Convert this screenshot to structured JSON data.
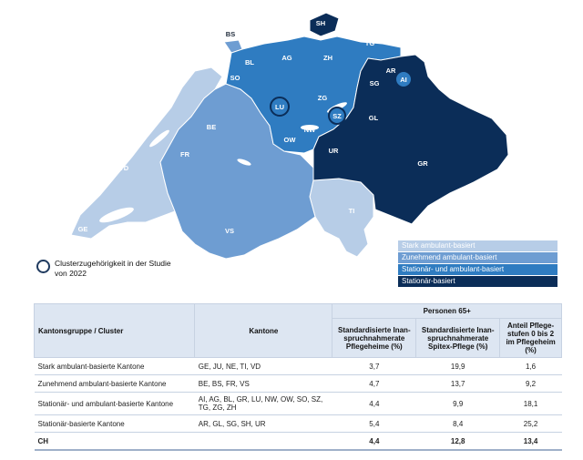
{
  "colors": {
    "stark": "#b7cde7",
    "zunehmend": "#6e9dd2",
    "stationaer_ambulant": "#2f7cc1",
    "stationaer": "#0b2d58"
  },
  "map": {
    "labels": {
      "SH": "SH",
      "BS": "BS",
      "TG": "TG",
      "JU": "JU",
      "BL": "BL",
      "AG": "AG",
      "ZH": "ZH",
      "AR": "AR",
      "AI": "AI",
      "SO": "SO",
      "SG": "SG",
      "NE": "NE",
      "BE": "BE",
      "LU": "LU",
      "ZG": "ZG",
      "SZ": "SZ",
      "GL": "GL",
      "NW": "NW",
      "OW": "OW",
      "UR": "UR",
      "FR": "FR",
      "VD": "VD",
      "GR": "GR",
      "GE": "GE",
      "VS": "VS",
      "TI": "TI"
    },
    "cluster_note": "Clusterzugehörigkeit in der Studie von 2022",
    "legend": [
      "Stark ambulant-basiert",
      "Zunehmend ambulant-basiert",
      "Stationär- und ambulant-basiert",
      "Stationär-basiert"
    ]
  },
  "table": {
    "header": {
      "group": "Kantonsgruppe / Cluster",
      "cantons": "Kantone",
      "persons": "Personen 65+",
      "col1": "Standardisierte Inan-spruchnahmerate Pflegeheime (%)",
      "col2": "Standardisierte Inan-spruchnahmerate Spitex-Pflege (%)",
      "col3": "Anteil Pflege-stufen 0 bis 2 im Pflegeheim (%)"
    },
    "rows": [
      {
        "group": "Stark ambulant-basierte Kantone",
        "cantons": "GE, JU, NE, TI, VD",
        "v1": "3,7",
        "v2": "19,9",
        "v3": "1,6"
      },
      {
        "group": "Zunehmend ambulant-basierte Kantone",
        "cantons": "BE, BS, FR, VS",
        "v1": "4,7",
        "v2": "13,7",
        "v3": "9,2"
      },
      {
        "group": "Stationär- und ambulant-basierte Kantone",
        "cantons": "AI, AG, BL, GR, LU, NW, OW, SO, SZ, TG, ZG, ZH",
        "v1": "4,4",
        "v2": "9,9",
        "v3": "18,1"
      },
      {
        "group": "Stationär-basierte Kantone",
        "cantons": "AR, GL, SG, SH, UR",
        "v1": "5,4",
        "v2": "8,4",
        "v3": "25,2"
      }
    ],
    "total": {
      "group": "CH",
      "v1": "4,4",
      "v2": "12,8",
      "v3": "13,4"
    }
  }
}
